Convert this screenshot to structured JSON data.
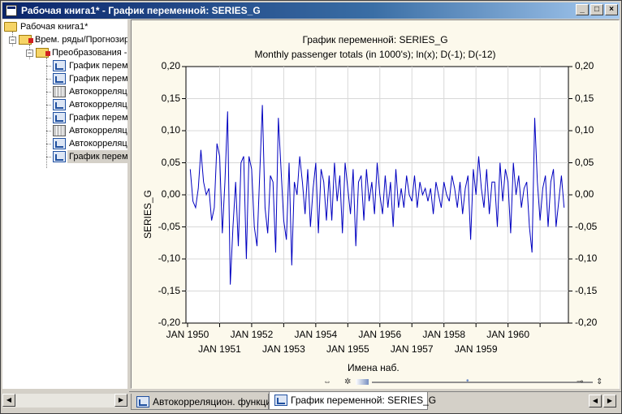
{
  "window": {
    "title": "Рабочая книга1* - График переменной: SERIES_G",
    "buttons": {
      "minimize": "_",
      "maximize": "□",
      "close": "×"
    }
  },
  "tree": {
    "root": "Рабочая книга1*",
    "group": "Врем. ряды/Прогнозир",
    "subgroup": "Преобразования -",
    "items": [
      {
        "label": "График перемен",
        "icon": "graph-icon"
      },
      {
        "label": "График перемен",
        "icon": "graph-icon"
      },
      {
        "label": "Автокорреляц",
        "icon": "table-icon"
      },
      {
        "label": "Автокорреляц",
        "icon": "graph-icon"
      },
      {
        "label": "График перемен",
        "icon": "graph-icon"
      },
      {
        "label": "Автокорреляц",
        "icon": "table-icon"
      },
      {
        "label": "Автокорреляц",
        "icon": "graph-icon"
      },
      {
        "label": "График перемен",
        "icon": "graph-icon",
        "selected": true
      }
    ]
  },
  "tabs": [
    {
      "label": "Автокорреляцион. функция",
      "active": false
    },
    {
      "label": "График переменной: SERIES_G",
      "active": true
    }
  ],
  "chart_data": {
    "type": "line",
    "title": "График переменной: SERIES_G",
    "subtitle": "Monthly passenger totals (in 1000's); ln(x); D(-1); D(-12)",
    "xlabel": "Имена наб.",
    "ylabel": "SERIES_G",
    "ylim": [
      -0.2,
      0.2
    ],
    "yticks": [
      "0,20",
      "0,15",
      "0,10",
      "0,05",
      "0,00",
      "-0,05",
      "-0,10",
      "-0,15",
      "-0,20"
    ],
    "xticks_top": [
      "JAN 1950",
      "JAN 1952",
      "JAN 1954",
      "JAN 1956",
      "JAN 1958",
      "JAN 1960"
    ],
    "xticks_bottom": [
      "JAN 1951",
      "JAN 1953",
      "JAN 1955",
      "JAN 1957",
      "JAN 1959"
    ],
    "grid": true,
    "line_color": "#0000c0",
    "series": [
      {
        "x_start": "FEB 1950",
        "values": [
          0.04,
          -0.01,
          -0.02,
          0.01,
          0.07,
          0.02,
          0.0,
          0.01,
          -0.04,
          -0.02,
          0.08,
          0.06,
          -0.06,
          0.02,
          0.13,
          -0.14,
          -0.05,
          0.02,
          -0.08,
          0.05,
          0.06,
          -0.1,
          0.06,
          0.04,
          -0.05,
          -0.08,
          0.03,
          0.14,
          -0.02,
          -0.06,
          0.03,
          0.02,
          -0.09,
          0.12,
          0.04,
          -0.04,
          -0.07,
          0.05,
          -0.11,
          0.02,
          0.0,
          0.06,
          0.02,
          -0.03,
          0.04,
          -0.05,
          0.01,
          0.05,
          -0.06,
          0.04,
          0.02,
          -0.04,
          0.03,
          -0.04,
          0.05,
          -0.01,
          0.03,
          -0.06,
          0.05,
          0.01,
          -0.03,
          0.04,
          -0.08,
          0.02,
          0.03,
          -0.04,
          0.04,
          -0.01,
          0.02,
          -0.03,
          0.05,
          0.0,
          -0.03,
          0.03,
          -0.02,
          0.02,
          -0.05,
          0.04,
          -0.02,
          0.01,
          -0.02,
          0.03,
          0.0,
          -0.01,
          0.03,
          -0.02,
          0.02,
          0.0,
          0.01,
          -0.01,
          0.01,
          -0.03,
          0.02,
          0.0,
          -0.02,
          0.02,
          0.0,
          -0.01,
          0.03,
          0.01,
          -0.02,
          0.02,
          -0.03,
          0.01,
          0.03,
          -0.07,
          0.04,
          0.0,
          0.06,
          0.01,
          -0.02,
          0.04,
          -0.03,
          0.02,
          0.02,
          -0.05,
          0.05,
          -0.01,
          0.04,
          0.02,
          -0.06,
          0.05,
          0.0,
          0.03,
          -0.02,
          0.01,
          0.02,
          -0.05,
          -0.09,
          0.12,
          0.02,
          -0.04,
          0.01,
          0.03,
          -0.05,
          0.02,
          0.04,
          -0.05,
          -0.01,
          0.03,
          -0.02
        ]
      }
    ]
  }
}
